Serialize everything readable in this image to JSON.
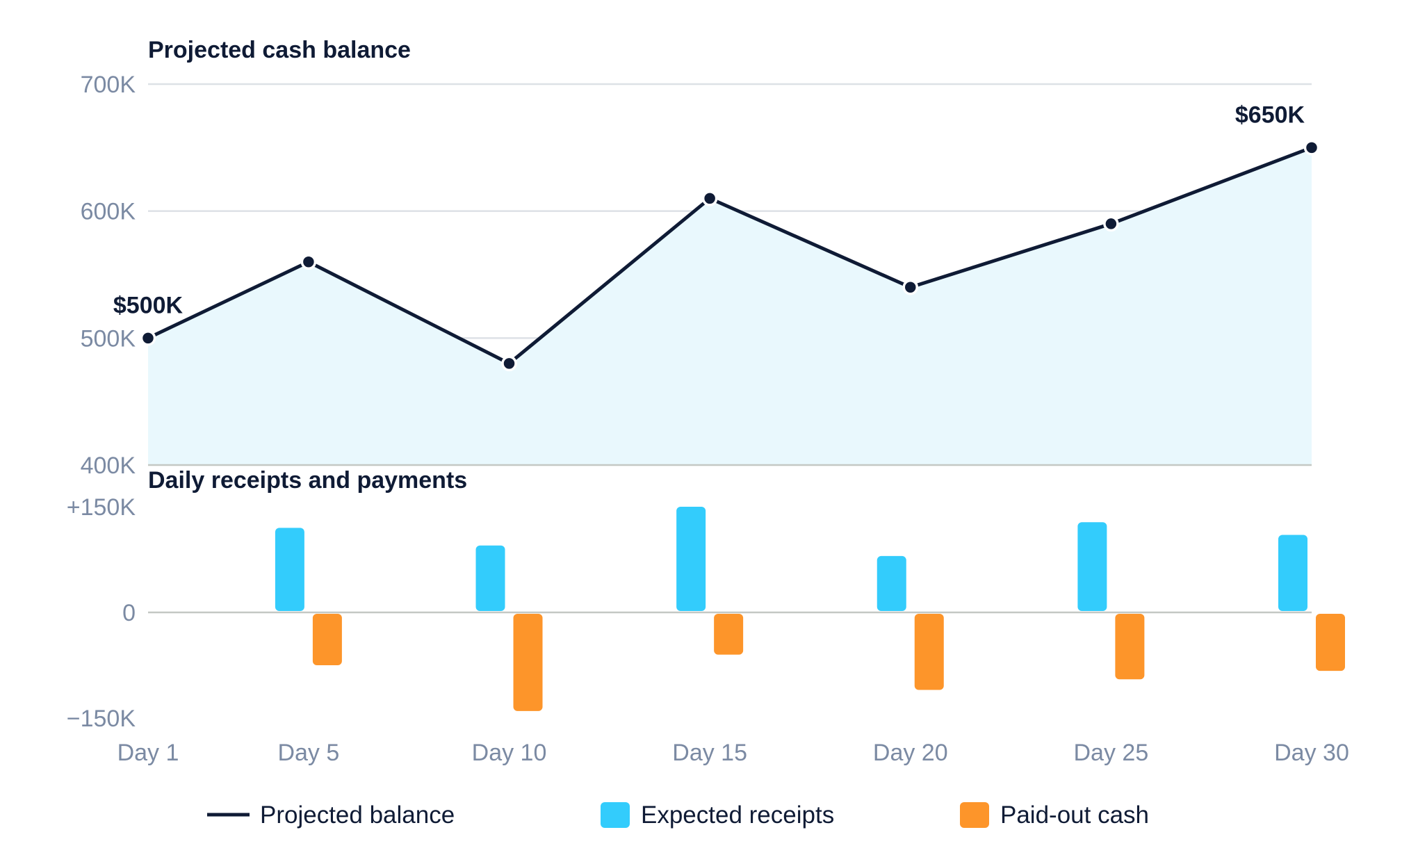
{
  "chart_data": [
    {
      "type": "line",
      "title": "Projected cash balance",
      "x": [
        "Day 1",
        "Day 5",
        "Day 10",
        "Day 15",
        "Day 20",
        "Day 25",
        "Day 30"
      ],
      "series": [
        {
          "name": "Projected balance",
          "values": [
            500,
            560,
            480,
            610,
            540,
            590,
            650
          ],
          "color": "#0f1b35",
          "fill": "#e9f8fd"
        }
      ],
      "y_unit": "K",
      "ylim": [
        400,
        700
      ],
      "yticks": [
        "700K",
        "600K",
        "500K",
        "400K"
      ],
      "annotations": [
        {
          "x": "Day 1",
          "text": "$500K"
        },
        {
          "x": "Day 30",
          "text": "$650K"
        }
      ],
      "grid": true
    },
    {
      "type": "bar",
      "title": "Daily receipts and payments",
      "categories": [
        "Day 5",
        "Day 10",
        "Day 15",
        "Day 20",
        "Day 25",
        "Day 30"
      ],
      "series": [
        {
          "name": "Expected receipts",
          "values": [
            120,
            95,
            150,
            80,
            128,
            110
          ],
          "color": "#33ccfc"
        },
        {
          "name": "Paid-out cash",
          "values": [
            -75,
            -140,
            -60,
            -110,
            -95,
            -83
          ],
          "color": "#fd952a"
        }
      ],
      "y_unit": "K",
      "ylim": [
        -150,
        150
      ],
      "yticks": [
        "+150K",
        "0",
        "−150K"
      ]
    }
  ],
  "x_tick_labels": [
    "Day 1",
    "Day 5",
    "Day 10",
    "Day 15",
    "Day 20",
    "Day 25",
    "Day 30"
  ],
  "legend": [
    {
      "label": "Projected balance",
      "marker": "line",
      "color": "#0f1b35"
    },
    {
      "label": "Expected receipts",
      "marker": "square",
      "color": "#33ccfc"
    },
    {
      "label": "Paid-out cash",
      "marker": "square",
      "color": "#fd952a"
    }
  ]
}
